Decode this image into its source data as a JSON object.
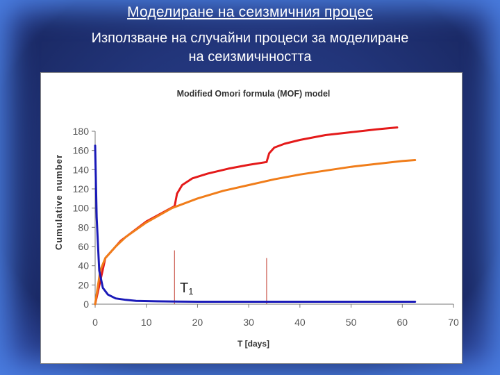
{
  "slide": {
    "title": "Моделиране на сеизмичния процес",
    "subtitle_line1": "Използване на случайни процеси за моделиране",
    "subtitle_line2": "на сеизмичнността"
  },
  "chart_data": {
    "type": "line",
    "title": "Modified Omori formula (MOF) model",
    "xlabel": "T [days]",
    "ylabel": "Cumulative number",
    "xlim": [
      0,
      70
    ],
    "ylim": [
      0,
      180
    ],
    "xticks": [
      0,
      10,
      20,
      30,
      40,
      50,
      60,
      70
    ],
    "yticks": [
      0,
      20,
      40,
      60,
      80,
      100,
      120,
      140,
      160,
      180
    ],
    "grid": false,
    "annotation": {
      "label": "T",
      "subscript": "1"
    },
    "event_markers_x": [
      15.5,
      33.5
    ],
    "series": [
      {
        "color": "#e41a1a",
        "x": [
          0,
          2,
          5,
          10,
          15.5,
          15.6,
          16,
          17,
          19,
          22,
          26,
          30,
          33.5,
          33.6,
          34,
          35,
          37,
          40,
          45,
          50,
          55,
          59
        ],
        "y": [
          0,
          48,
          66,
          86,
          102,
          104,
          115,
          124,
          131,
          136,
          141,
          145,
          148,
          150,
          157,
          163,
          167,
          171,
          176,
          179,
          182,
          184
        ]
      },
      {
        "color": "#f07d1a",
        "x": [
          0,
          1,
          2,
          4,
          6,
          10,
          15,
          20,
          25,
          30,
          35,
          40,
          45,
          50,
          55,
          60,
          62.5
        ],
        "y": [
          0,
          35,
          48,
          60,
          70,
          85,
          100,
          110,
          118,
          124,
          130,
          135,
          139,
          143,
          146,
          149,
          150
        ]
      },
      {
        "color": "#1a1ab8",
        "x": [
          0,
          0.3,
          0.8,
          1.5,
          2.5,
          4,
          6,
          8,
          12,
          20,
          30,
          40,
          62.5
        ],
        "y": [
          165,
          90,
          35,
          17,
          10,
          6,
          4.5,
          3.5,
          3,
          2.5,
          2.5,
          2.5,
          2.5
        ]
      }
    ]
  }
}
